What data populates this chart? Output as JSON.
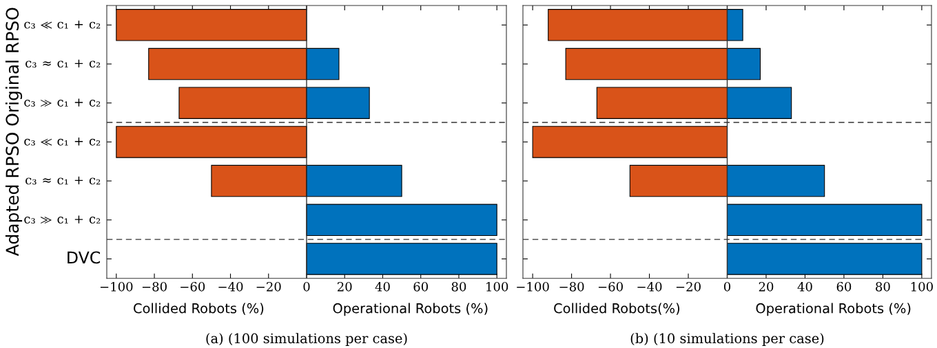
{
  "chart_data": [
    {
      "type": "bar",
      "orientation": "horizontal",
      "stacked": true,
      "title": "(a) (100 simulations per case)",
      "categories": [
        "c₃ ≪ c₁ + c₂",
        "c₃ ≈ c₁ + c₂",
        "c₃ ≫ c₁ + c₂",
        "c₃ ≪ c₁ + c₂",
        "c₃ ≈ c₁ + c₂",
        "c₃ ≫ c₁ + c₂",
        "DVC"
      ],
      "series": [
        {
          "color": "#d95319",
          "values": [
            -100,
            -83,
            -67,
            -100,
            -50,
            null,
            null
          ]
        },
        {
          "color": "#0072bd",
          "values": [
            null,
            17,
            33,
            null,
            50,
            100,
            100
          ]
        }
      ],
      "xlim": [
        -105,
        105
      ],
      "xticks": [
        {
          "value": -100,
          "label": "−100"
        },
        {
          "value": -80,
          "label": "−80"
        },
        {
          "value": -60,
          "label": "−60"
        },
        {
          "value": -40,
          "label": "−40"
        },
        {
          "value": -20,
          "label": "−20"
        },
        0,
        20,
        40,
        60,
        80,
        100
      ],
      "ref_lines": [
        {
          "axis": "x",
          "value": 0,
          "line_style": "solid"
        }
      ],
      "annotations": [
        "Collided Robots (%)",
        "Operational Robots (%)",
        "Original RPSO",
        "Adapted RPSO"
      ]
    },
    {
      "type": "bar",
      "orientation": "horizontal",
      "stacked": true,
      "title": "(b) (10 simulations per case)",
      "categories": [
        null,
        null,
        null,
        null,
        null,
        null,
        null
      ],
      "series": [
        {
          "color": "#d95319",
          "values": [
            -92,
            -83,
            -67,
            -100,
            -50,
            null,
            null
          ]
        },
        {
          "color": "#0072bd",
          "values": [
            8,
            17,
            33,
            null,
            50,
            100,
            100
          ]
        }
      ],
      "xlim": [
        -105,
        105
      ],
      "xticks": [
        {
          "value": -100,
          "label": "−100"
        },
        {
          "value": -80,
          "label": "−80"
        },
        {
          "value": -60,
          "label": "−60"
        },
        {
          "value": -40,
          "label": "−40"
        },
        {
          "value": -20,
          "label": "−20"
        },
        0,
        20,
        40,
        60,
        80,
        100
      ],
      "ref_lines": [
        {
          "axis": "x",
          "value": 0,
          "line_style": "solid"
        }
      ],
      "annotations": [
        "Collided Robots(%)",
        "Operational Robots (%)"
      ]
    }
  ]
}
